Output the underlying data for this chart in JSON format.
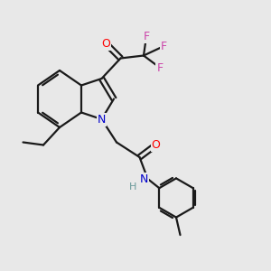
{
  "background_color": "#e8e8e8",
  "bond_color": "#1a1a1a",
  "atom_colors": {
    "O": "#ff0000",
    "N": "#0000cc",
    "F": "#cc44aa",
    "H": "#6a9a9a",
    "C": "#1a1a1a"
  }
}
